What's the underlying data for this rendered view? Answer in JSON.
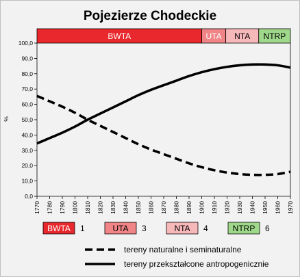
{
  "chart_data": {
    "type": "line",
    "title": "Pojezierze Chodeckie",
    "ylabel": "%",
    "xlabel": "",
    "xlim": [
      1770,
      1970
    ],
    "ylim": [
      0,
      100
    ],
    "x_ticks": [
      "1770",
      "1780",
      "1790",
      "1800",
      "1810",
      "1820",
      "1830",
      "1840",
      "1850",
      "1860",
      "1870",
      "1880",
      "1890",
      "1900",
      "1910",
      "1920",
      "1930",
      "1940",
      "1950",
      "1960",
      "1970"
    ],
    "y_ticks": [
      "0,0",
      "10,0",
      "20,0",
      "30,0",
      "40,0",
      "50,0",
      "60,0",
      "70,0",
      "80,0",
      "90,0",
      "100,0"
    ],
    "grid": false,
    "phases": [
      {
        "label": "BWTA",
        "start": 1770,
        "end": 1900,
        "color": "#e8282d"
      },
      {
        "label": "UTA",
        "start": 1900,
        "end": 1919,
        "color": "#f08486"
      },
      {
        "label": "NTA",
        "start": 1919,
        "end": 1945,
        "color": "#f7b8ba"
      },
      {
        "label": "NTRP",
        "start": 1945,
        "end": 1970,
        "color": "#9fd88a"
      }
    ],
    "series": [
      {
        "name": "tereny naturalne i seminaturalne",
        "style": "dashed",
        "x": [
          1770,
          1780,
          1790,
          1800,
          1810,
          1820,
          1830,
          1840,
          1850,
          1860,
          1870,
          1880,
          1890,
          1900,
          1910,
          1920,
          1930,
          1940,
          1950,
          1960,
          1970
        ],
        "y": [
          65.5,
          62,
          58.5,
          54.5,
          50,
          46,
          42,
          38,
          34,
          30.5,
          27.5,
          24.5,
          21.5,
          19,
          17,
          15.5,
          14.5,
          14,
          14,
          14.5,
          16
        ]
      },
      {
        "name": "tereny przekształcone antropogenicznie",
        "style": "solid",
        "x": [
          1770,
          1780,
          1790,
          1800,
          1810,
          1820,
          1830,
          1840,
          1850,
          1860,
          1870,
          1880,
          1890,
          1900,
          1910,
          1920,
          1930,
          1940,
          1950,
          1960,
          1970
        ],
        "y": [
          34.5,
          38,
          41.5,
          45.5,
          50,
          54,
          58,
          62,
          66,
          69.5,
          72.5,
          75.5,
          78.5,
          81,
          83,
          84.5,
          85.5,
          86,
          86,
          85.5,
          84
        ]
      }
    ]
  },
  "legend": {
    "phases": [
      {
        "label": "BWTA",
        "number": "1",
        "color": "#e8282d"
      },
      {
        "label": "UTA",
        "number": "3",
        "color": "#f08486"
      },
      {
        "label": "NTA",
        "number": "4",
        "color": "#f7b8ba"
      },
      {
        "label": "NTRP",
        "number": "6",
        "color": "#9fd88a"
      }
    ],
    "lines": [
      {
        "label": "tereny naturalne i seminaturalne",
        "style": "dashed"
      },
      {
        "label": "tereny przekształcone antropogenicznie",
        "style": "solid"
      }
    ]
  }
}
